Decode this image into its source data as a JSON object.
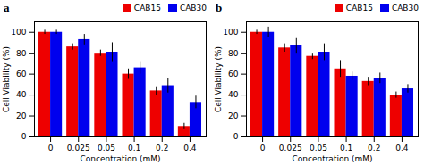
{
  "chart_data": [
    {
      "type": "bar",
      "title": "a",
      "categories": [
        "0",
        "0.025",
        "0.05",
        "0.1",
        "0.2",
        "0.4"
      ],
      "series": [
        {
          "name": "CAB15",
          "color": "#EE0000",
          "values": [
            100,
            86,
            80,
            60,
            44,
            10
          ],
          "errors": [
            2,
            3,
            3,
            5,
            4,
            3
          ]
        },
        {
          "name": "CAB30",
          "color": "#0000EE",
          "values": [
            100,
            93,
            81,
            66,
            49,
            33
          ],
          "errors": [
            2,
            5,
            9,
            6,
            7,
            6
          ]
        }
      ],
      "xlabel": "Concentration (mM)",
      "ylabel": "Cell Viability (%)",
      "ylim": [
        0,
        110
      ],
      "yticks": [
        0,
        20,
        40,
        60,
        80,
        100
      ],
      "grid": false,
      "legend": "upper right"
    },
    {
      "type": "bar",
      "title": "b",
      "categories": [
        "0",
        "0.025",
        "0.05",
        "0.1",
        "0.2",
        "0.4"
      ],
      "series": [
        {
          "name": "CAB15",
          "color": "#EE0000",
          "values": [
            100,
            85,
            77,
            65,
            53,
            40
          ],
          "errors": [
            2,
            4,
            3,
            8,
            4,
            3
          ]
        },
        {
          "name": "CAB30",
          "color": "#0000EE",
          "values": [
            100,
            87,
            81,
            58,
            56,
            46
          ],
          "errors": [
            5,
            7,
            8,
            4,
            5,
            4
          ]
        }
      ],
      "xlabel": "Concentration (mM)",
      "ylabel": "Cell Viability (%)",
      "ylim": [
        0,
        110
      ],
      "yticks": [
        0,
        20,
        40,
        60,
        80,
        100
      ],
      "grid": false,
      "legend": "upper right"
    }
  ]
}
